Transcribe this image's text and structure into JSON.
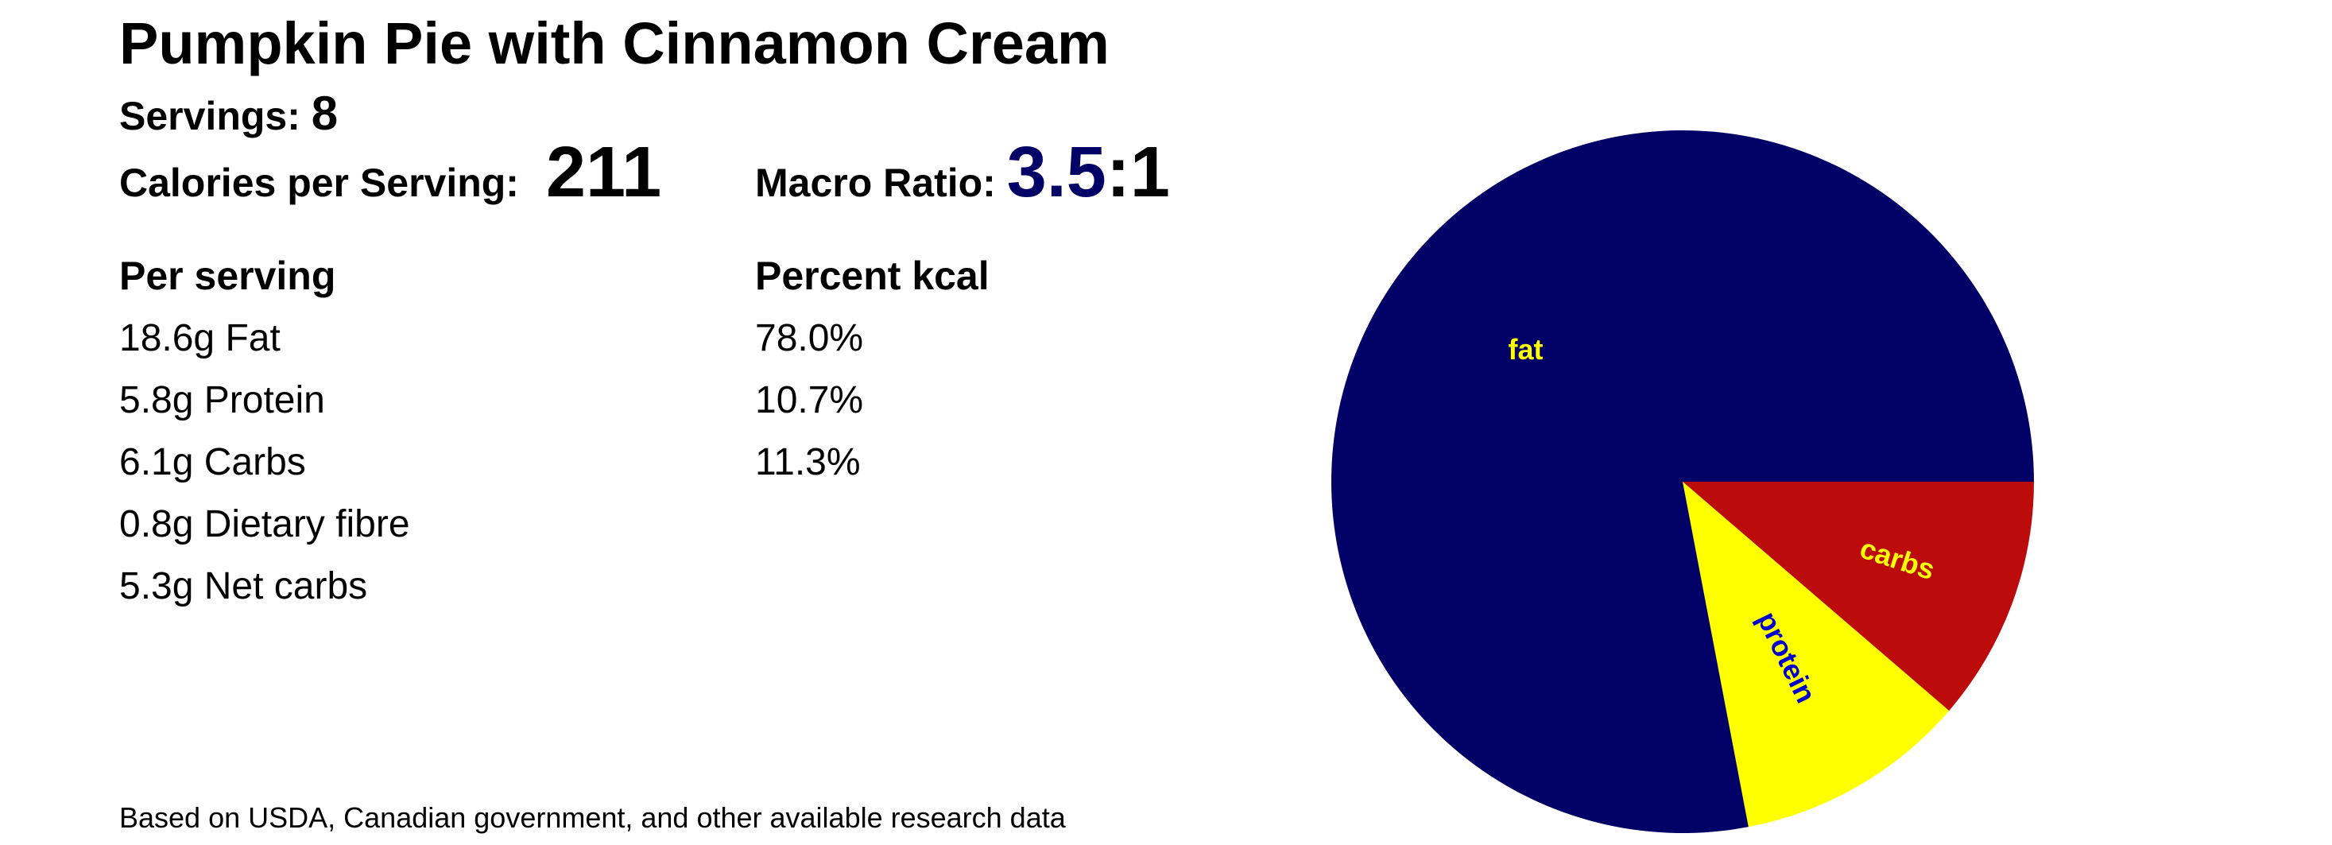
{
  "title": "Pumpkin Pie with Cinnamon Cream",
  "servings": {
    "label": "Servings:",
    "value": "8"
  },
  "calories": {
    "label": "Calories per Serving:",
    "value": "211"
  },
  "macro_ratio": {
    "label": "Macro Ratio:",
    "value": "3.5",
    "suffix": ":1"
  },
  "columns": {
    "per_serving": "Per serving",
    "percent_kcal": "Percent kcal"
  },
  "nutrients": [
    {
      "amount": "18.6g Fat",
      "percent": "78.0%"
    },
    {
      "amount": "5.8g Protein",
      "percent": "10.7%"
    },
    {
      "amount": "6.1g Carbs",
      "percent": "11.3%"
    },
    {
      "amount": "0.8g Dietary fibre",
      "percent": ""
    },
    {
      "amount": "5.3g Net carbs",
      "percent": ""
    }
  ],
  "footnote": "Based on USDA, Canadian government, and other available research data",
  "colors": {
    "fat": "#000066",
    "protein": "#ffff00",
    "carbs": "#bb0b0b",
    "fat_label": "#ffff00",
    "protein_label": "#0000cc",
    "carbs_label": "#ffff00",
    "ratio_accent": "#000066"
  },
  "chart_data": {
    "type": "pie",
    "title": "",
    "start_angle_deg": 0,
    "direction": "counterclockwise",
    "slices": [
      {
        "label": "carbs",
        "value": 11.3
      },
      {
        "label": "protein",
        "value": 10.7
      },
      {
        "label": "fat",
        "value": 78.0
      }
    ]
  }
}
